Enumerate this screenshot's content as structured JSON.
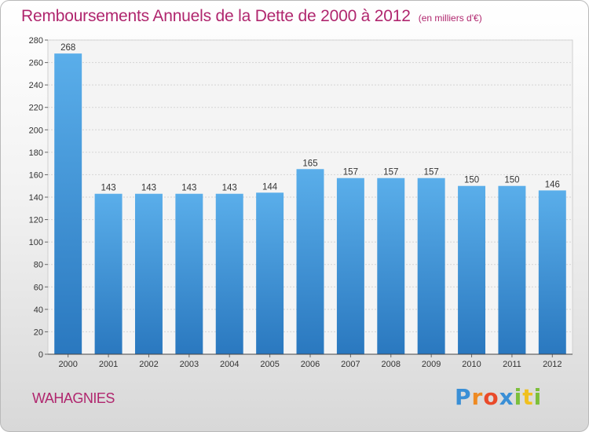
{
  "header": {
    "title": "Remboursements Annuels de la Dette de 2000 à 2012",
    "unit": "(en milliers d'€)"
  },
  "commune": "WAHAGNIES",
  "logo": {
    "letters": [
      {
        "ch": "P",
        "color": "#3a8fd6"
      },
      {
        "ch": "r",
        "color": "#ee8a22"
      },
      {
        "ch": "o",
        "color": "#e94a2a"
      },
      {
        "ch": "x",
        "color": "#3a8fd6"
      },
      {
        "ch": "i",
        "color": "#7cbf3a"
      },
      {
        "ch": "t",
        "color": "#f0c020"
      },
      {
        "ch": "i",
        "color": "#7cbf3a"
      }
    ]
  },
  "chart_data": {
    "type": "bar",
    "categories": [
      "2000",
      "2001",
      "2002",
      "2003",
      "2004",
      "2005",
      "2006",
      "2007",
      "2008",
      "2009",
      "2010",
      "2011",
      "2012"
    ],
    "values": [
      268,
      143,
      143,
      143,
      143,
      144,
      165,
      157,
      157,
      157,
      150,
      150,
      146
    ],
    "ylim": [
      0,
      280
    ],
    "ytick_step": 20,
    "grid": true,
    "bar_color_top": "#5aaeea",
    "bar_color_bottom": "#2a78bf"
  }
}
